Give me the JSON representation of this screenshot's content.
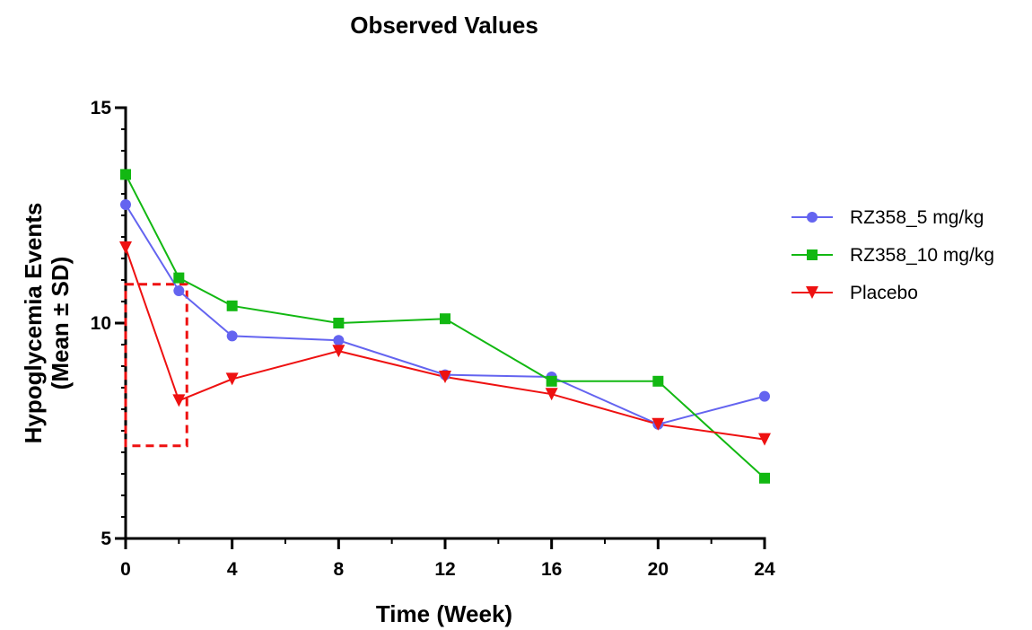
{
  "chart_data": {
    "type": "line",
    "title": "Observed Values",
    "xlabel": "Time (Week)",
    "ylabel_line1": "Hypoglycemia Events",
    "ylabel_line2": "(Mean ± SD)",
    "xlim": [
      0,
      24
    ],
    "ylim": [
      5,
      15
    ],
    "x_ticks": [
      0,
      4,
      8,
      12,
      16,
      20,
      24
    ],
    "x_minor_ticks": [
      2,
      6,
      10,
      14,
      18,
      22
    ],
    "y_ticks": [
      5,
      10,
      15
    ],
    "grid": false,
    "legend_position": "right",
    "series": [
      {
        "name": "RZ358_5 mg/kg",
        "color": "#6464F0",
        "marker": "circle",
        "x": [
          0,
          2,
          4,
          8,
          12,
          16,
          20,
          24
        ],
        "values": [
          12.75,
          10.75,
          9.7,
          9.6,
          8.8,
          8.75,
          7.65,
          8.3
        ]
      },
      {
        "name": "RZ358_10 mg/kg",
        "color": "#12B812",
        "marker": "square",
        "x": [
          0,
          2,
          4,
          8,
          12,
          16,
          20,
          24
        ],
        "values": [
          13.45,
          11.05,
          10.4,
          10.0,
          10.1,
          8.65,
          8.65,
          6.4
        ]
      },
      {
        "name": "Placebo",
        "color": "#EE1111",
        "marker": "triangle-down",
        "x": [
          0,
          2,
          4,
          8,
          12,
          16,
          20,
          24
        ],
        "values": [
          11.75,
          8.2,
          8.7,
          9.35,
          8.75,
          8.35,
          7.65,
          7.3
        ]
      }
    ],
    "annotations": [
      {
        "type": "dashed-box",
        "color": "#EE1111",
        "x_range": [
          0,
          2.3
        ],
        "y_range": [
          7.15,
          10.9
        ]
      }
    ]
  }
}
